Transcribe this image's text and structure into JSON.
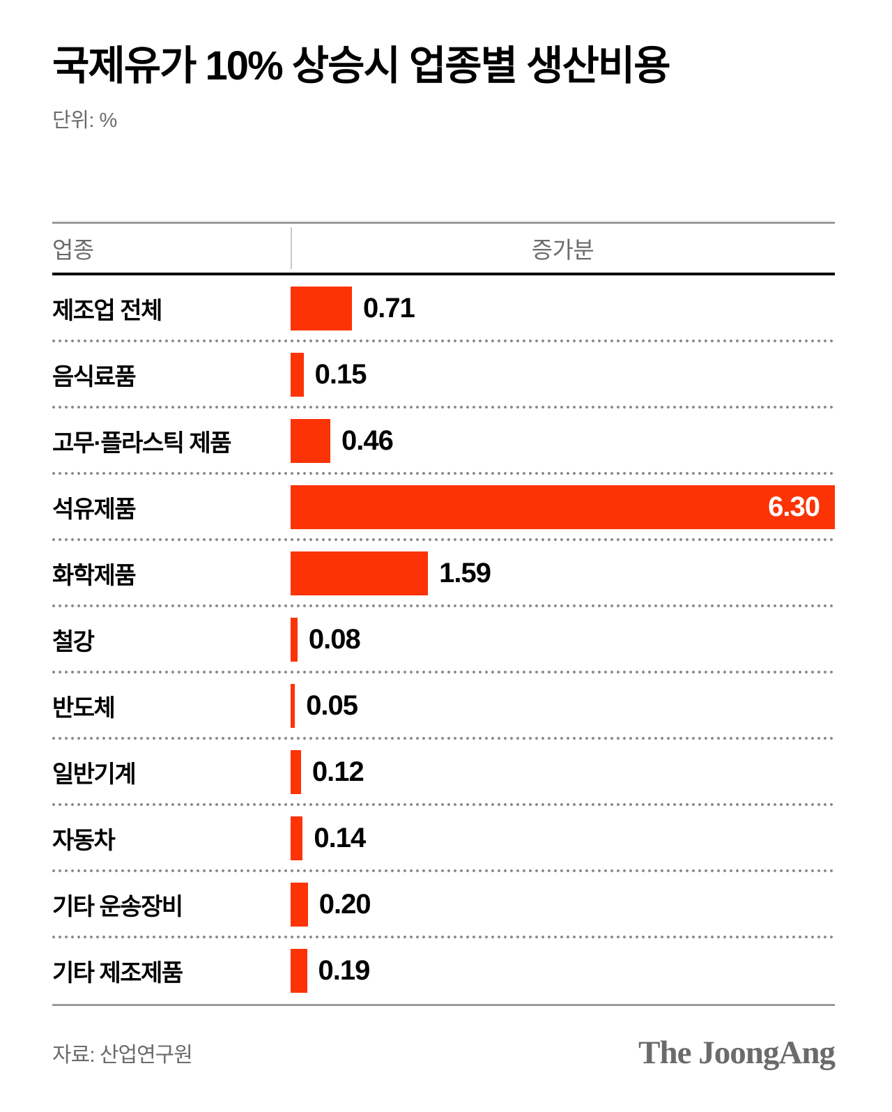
{
  "page": {
    "title": "국제유가 10% 상승시 업종별 생산비용",
    "unit_label": "단위: %"
  },
  "table_header": {
    "industry": "업종",
    "increase": "증가분"
  },
  "chart_data": {
    "type": "bar",
    "orientation": "horizontal",
    "title": "국제유가 10% 상승시 업종별 생산비용",
    "unit": "%",
    "xlim": [
      0,
      6.3
    ],
    "bar_color": "#fb3305",
    "grid": false,
    "categories": [
      "제조업 전체",
      "음식료품",
      "고무·플라스틱 제품",
      "석유제품",
      "화학제품",
      "철강",
      "반도체",
      "일반기계",
      "자동차",
      "기타 운송장비",
      "기타 제조제품"
    ],
    "values": [
      0.71,
      0.15,
      0.46,
      6.3,
      1.59,
      0.08,
      0.05,
      0.12,
      0.14,
      0.2,
      0.19
    ],
    "value_labels": [
      "0.71",
      "0.15",
      "0.46",
      "6.30",
      "1.59",
      "0.08",
      "0.05",
      "0.12",
      "0.14",
      "0.20",
      "0.19"
    ]
  },
  "footer": {
    "source": "자료: 산업연구원",
    "logo": "The JoongAng"
  }
}
